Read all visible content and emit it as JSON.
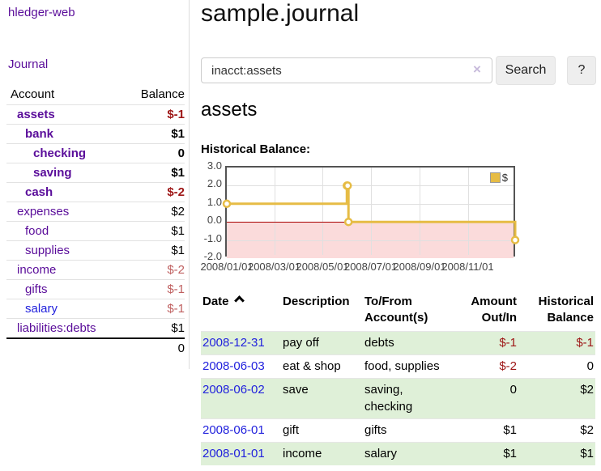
{
  "app": {
    "title": "hledger-web"
  },
  "sidebar": {
    "journal_link": "Journal",
    "accounts_table": {
      "col_account": "Account",
      "col_balance": "Balance",
      "rows": [
        {
          "name": "assets",
          "level": 1,
          "bold": true,
          "balance": "$-1",
          "balance_style": "neg-strong"
        },
        {
          "name": "bank",
          "level": 2,
          "bold": true,
          "balance": "$1",
          "balance_style": ""
        },
        {
          "name": "checking",
          "level": 3,
          "bold": true,
          "balance": "0",
          "balance_style": ""
        },
        {
          "name": "saving",
          "level": 3,
          "bold": true,
          "balance": "$1",
          "balance_style": ""
        },
        {
          "name": "cash",
          "level": 2,
          "bold": true,
          "balance": "$-2",
          "balance_style": "neg-strong"
        },
        {
          "name": "expenses",
          "level": 1,
          "bold": false,
          "balance": "$2",
          "balance_style": ""
        },
        {
          "name": "food",
          "level": 2,
          "bold": false,
          "balance": "$1",
          "balance_style": ""
        },
        {
          "name": "supplies",
          "level": 2,
          "bold": false,
          "balance": "$1",
          "balance_style": ""
        },
        {
          "name": "income",
          "level": 1,
          "bold": false,
          "balance": "$-2",
          "balance_style": "neg-soft"
        },
        {
          "name": "gifts",
          "level": 2,
          "bold": false,
          "balance": "$-1",
          "balance_style": "neg-soft"
        },
        {
          "name": "salary",
          "level": 2,
          "bold": false,
          "link_color": "blue",
          "balance": "$-1",
          "balance_style": "neg-soft"
        },
        {
          "name": "liabilities:debts",
          "level": 1,
          "bold": false,
          "balance": "$1",
          "balance_style": ""
        }
      ],
      "total": "0"
    }
  },
  "header": {
    "title": "sample.journal"
  },
  "search": {
    "value": "inacct:assets",
    "clear_icon": "×",
    "button_label": "Search",
    "help_label": "?"
  },
  "account_page": {
    "heading": "assets",
    "chart_label": "Historical Balance:"
  },
  "chart_data": {
    "type": "line",
    "title": "Historical Balance",
    "step": true,
    "ylim": [
      -2,
      3
    ],
    "yticks": [
      3.0,
      2.0,
      1.0,
      0.0,
      -1.0,
      -2.0
    ],
    "xticks": [
      "2008/01/01",
      "2008/03/01",
      "2008/05/01",
      "2008/07/01",
      "2008/09/01",
      "2008/11/01"
    ],
    "x_range": [
      "2008-01-01",
      "2008-12-31"
    ],
    "grid": true,
    "legend": {
      "label": "$",
      "position": "top-right"
    },
    "series": [
      {
        "name": "$",
        "points": [
          [
            "2008-01-01",
            1
          ],
          [
            "2008-06-01",
            2
          ],
          [
            "2008-06-02",
            2
          ],
          [
            "2008-06-03",
            0
          ],
          [
            "2008-12-31",
            -1
          ]
        ]
      }
    ]
  },
  "register": {
    "columns": {
      "date": "Date",
      "description": "Description",
      "tofrom": "To/From Account(s)",
      "amount": "Amount Out/In",
      "historical": "Historical Balance"
    },
    "rows": [
      {
        "date": "2008-12-31",
        "description": "pay off",
        "accounts": "debts",
        "amount": "$-1",
        "amount_neg": true,
        "balance": "$-1",
        "balance_neg": true
      },
      {
        "date": "2008-06-03",
        "description": "eat & shop",
        "accounts": "food, supplies",
        "amount": "$-2",
        "amount_neg": true,
        "balance": "0",
        "balance_neg": false
      },
      {
        "date": "2008-06-02",
        "description": "save",
        "accounts": "saving,\nchecking",
        "amount": "0",
        "amount_neg": false,
        "balance": "$2",
        "balance_neg": false
      },
      {
        "date": "2008-06-01",
        "description": "gift",
        "accounts": "gifts",
        "amount": "$1",
        "amount_neg": false,
        "balance": "$2",
        "balance_neg": false
      },
      {
        "date": "2008-01-01",
        "description": "income",
        "accounts": "salary",
        "amount": "$1",
        "amount_neg": false,
        "balance": "$1",
        "balance_neg": false
      }
    ]
  },
  "colors": {
    "purple": "#5a0d9a",
    "blue": "#2222dd",
    "neg_strong": "#9d1515",
    "neg_soft": "#bf5f5f",
    "row_green": "#dff0d8",
    "chart_line": "#e6bc45",
    "chart_fill_neg": "#fbdbdb",
    "zero_line": "#a80000",
    "grid": "#e0e0e0",
    "plot_border": "#545454",
    "button_bg": "#eeeeee",
    "border_light": "#dddddd",
    "clear_x": "#c7badb"
  }
}
